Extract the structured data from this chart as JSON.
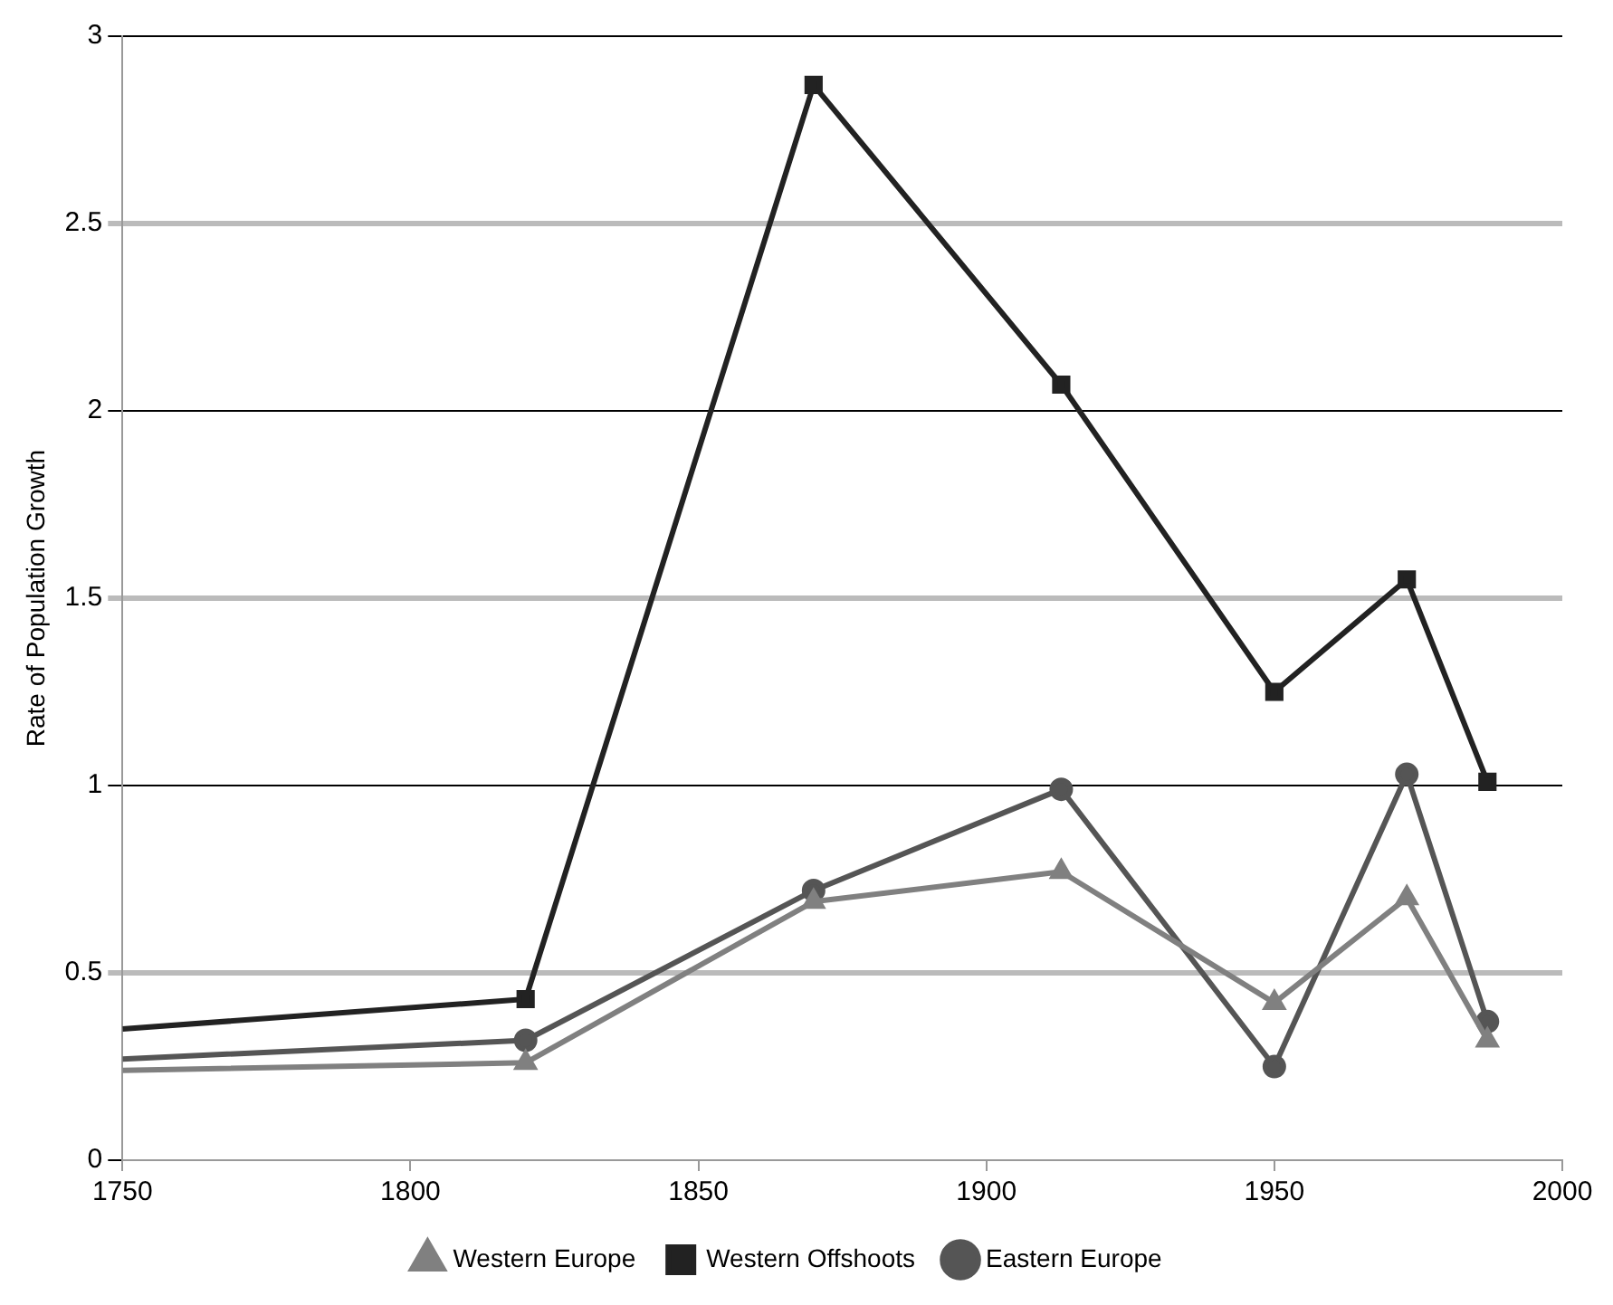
{
  "chart_data": {
    "type": "line",
    "ylabel": "Rate of Population Growth",
    "x": [
      1750,
      1820,
      1870,
      1913,
      1950,
      1973,
      1987
    ],
    "series": [
      {
        "name": "Western Europe",
        "color": "#808080",
        "marker": "triangle",
        "values": [
          0.24,
          0.26,
          0.69,
          0.77,
          0.42,
          0.7,
          0.32
        ]
      },
      {
        "name": "Western Offshoots",
        "color": "#222222",
        "marker": "square",
        "values": [
          0.35,
          0.43,
          2.87,
          2.07,
          1.25,
          1.55,
          1.01
        ]
      },
      {
        "name": "Eastern Europe",
        "color": "#555555",
        "marker": "circle",
        "values": [
          0.27,
          0.32,
          0.72,
          0.99,
          0.25,
          1.03,
          0.37
        ]
      }
    ],
    "xlim": [
      1750,
      2000
    ],
    "xticks": [
      1750,
      1800,
      1850,
      1900,
      1950,
      2000
    ],
    "ylim": [
      0,
      3
    ],
    "yticks": [
      0,
      0.5,
      1,
      1.5,
      2,
      2.5,
      3
    ],
    "grid": "y",
    "legend": "bottom"
  }
}
